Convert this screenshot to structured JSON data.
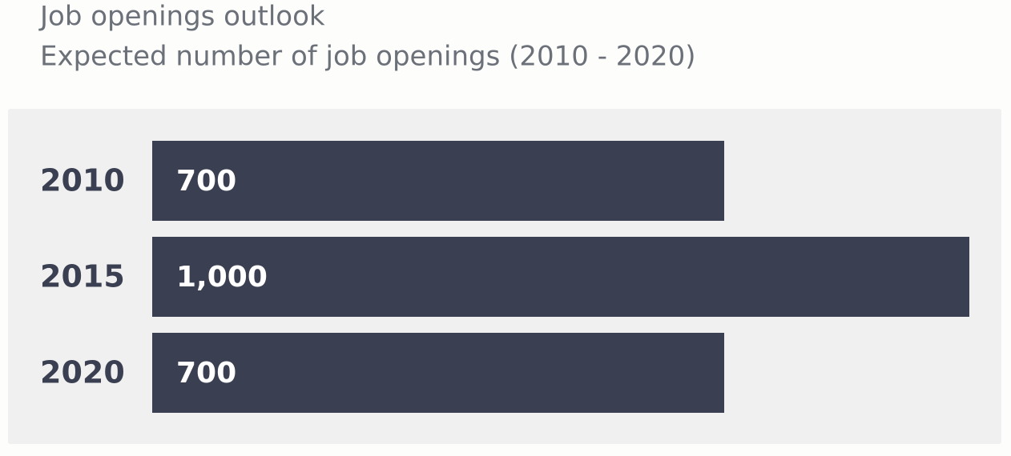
{
  "chart_data": {
    "type": "hbar",
    "title": "Job openings outlook",
    "subtitle": "Expected number of job openings (2010 - 2020)",
    "categories": [
      "2010",
      "2015",
      "2020"
    ],
    "values": [
      700,
      1000,
      700
    ],
    "value_labels": [
      "700",
      "1,000",
      "700"
    ],
    "color": "#3a3f51"
  }
}
